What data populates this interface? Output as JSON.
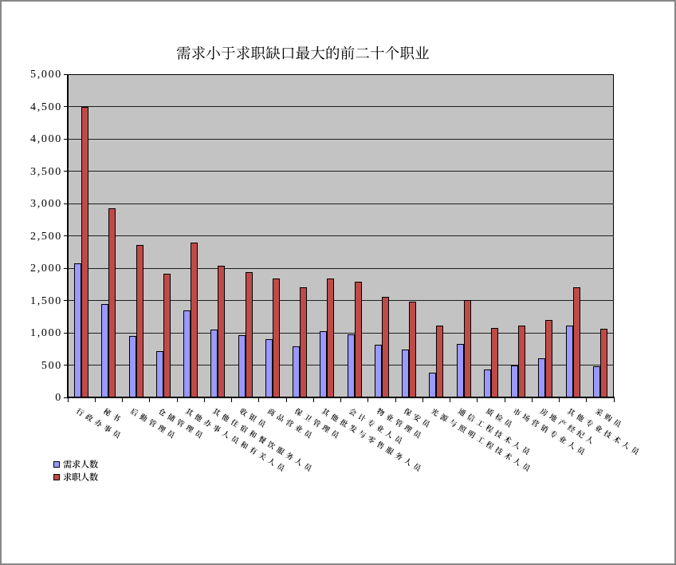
{
  "chart_data": {
    "type": "bar",
    "title": "需求小于求职缺口最大的前二十个职业",
    "categories": [
      "行政办事员",
      "秘书",
      "后勤管理员",
      "仓储管理员",
      "其他办事人员和有关人员",
      "其他住宿和餐饮服务人员",
      "收银员",
      "商品营业员",
      "保卫管理员",
      "其他批发与零售服务人员",
      "会计专业人员",
      "物业管理员",
      "保安员",
      "光源与照明工程技术人员",
      "通信工程技术人员",
      "质检员",
      "市场营销专业人员",
      "房地产经纪人",
      "其他专业技术人员",
      "采购员"
    ],
    "series": [
      {
        "name": "需求人数",
        "color": "#9999ff",
        "values": [
          2070,
          1440,
          950,
          720,
          1340,
          1050,
          965,
          900,
          790,
          1020,
          970,
          820,
          745,
          385,
          830,
          435,
          490,
          600,
          1110,
          480
        ]
      },
      {
        "name": "求职人数",
        "color": "#bf4b48",
        "values": [
          4490,
          2930,
          2360,
          1910,
          2390,
          2040,
          1940,
          1835,
          1700,
          1840,
          1790,
          1550,
          1480,
          1110,
          1510,
          1070,
          1110,
          1200,
          1700,
          1060
        ]
      }
    ],
    "xlabel": "",
    "ylabel": "",
    "ylim": [
      0,
      5000
    ],
    "y_tick_step": 500,
    "y_tick_labels": [
      "0",
      "500",
      "1,000",
      "1,500",
      "2,000",
      "2,500",
      "3,000",
      "3,500",
      "4,000",
      "4,500",
      "5,000"
    ],
    "grid": true,
    "legend_position": "bottom-left",
    "plot_bg_color": "#c3c3c3"
  }
}
